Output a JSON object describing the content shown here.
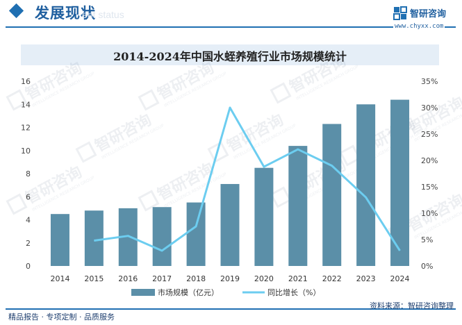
{
  "header": {
    "title": "发展现状",
    "ghost_text": "ent status",
    "logo_name": "智研咨询",
    "logo_url": "www.chyxx.com",
    "accent_color": "#1f6fb2"
  },
  "watermark": {
    "brand": "智研咨询",
    "sub": "INTELLIGENCE RESEARCH GROUP"
  },
  "chart_data": {
    "type": "bar",
    "title": "2014-2024年中国水蛭养殖行业市场规模统计",
    "categories": [
      "2014",
      "2015",
      "2016",
      "2017",
      "2018",
      "2019",
      "2020",
      "2021",
      "2022",
      "2023",
      "2024"
    ],
    "series": [
      {
        "name": "市场规模（亿元）",
        "type": "bar",
        "axis": "left",
        "color": "#5b8fa8",
        "values": [
          4.5,
          4.8,
          5.0,
          5.1,
          5.5,
          7.1,
          8.5,
          10.4,
          12.3,
          14.0,
          14.4
        ]
      },
      {
        "name": "同比增长（%）",
        "type": "line",
        "axis": "right",
        "color": "#6ccdf0",
        "values": [
          null,
          4.8,
          5.7,
          2.9,
          7.5,
          30.0,
          18.8,
          22.1,
          19.0,
          13.0,
          2.9
        ]
      }
    ],
    "y_left": {
      "min": 0,
      "max": 16,
      "ticks": [
        "0",
        "2",
        "4",
        "6",
        "8",
        "10",
        "12",
        "14",
        "16"
      ]
    },
    "y_right": {
      "min": 0,
      "max": 35,
      "ticks": [
        "0%",
        "5%",
        "10%",
        "15%",
        "20%",
        "25%",
        "30%",
        "35%"
      ]
    },
    "grid": false,
    "legend_position": "bottom"
  },
  "footer": {
    "left": "精品报告 · 专项定制 · 品质服务",
    "right": "资料来源：智研咨询整理"
  }
}
